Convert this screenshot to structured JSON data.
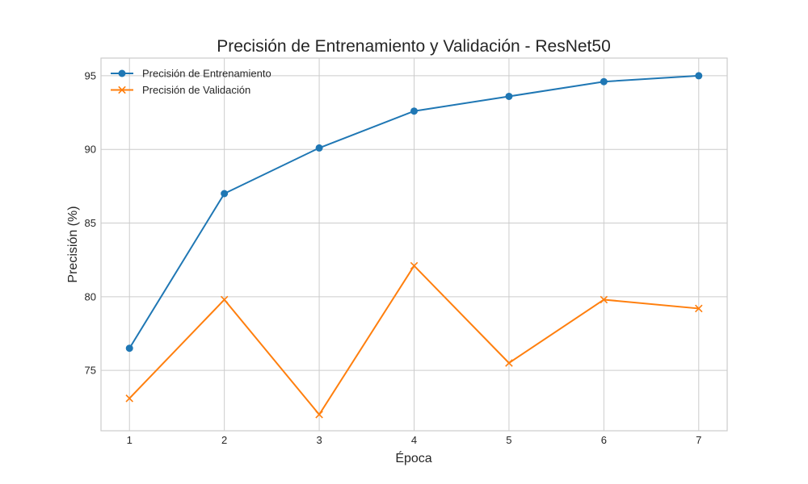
{
  "chart_data": {
    "type": "line",
    "title": "Precisión de Entrenamiento y Validación - ResNet50",
    "xlabel": "Época",
    "ylabel": "Precisión (%)",
    "x": [
      1,
      2,
      3,
      4,
      5,
      6,
      7
    ],
    "x_ticks": [
      "1",
      "2",
      "3",
      "4",
      "5",
      "6",
      "7"
    ],
    "y_ticks": [
      "75",
      "80",
      "85",
      "90",
      "95"
    ],
    "xlim": [
      0.7,
      7.3
    ],
    "ylim": [
      70.9,
      96.2
    ],
    "grid": true,
    "legend_position": "top-left",
    "series": [
      {
        "name": "Precisión de Entrenamiento",
        "marker": "circle",
        "color": "#1f77b4",
        "values": [
          76.5,
          87.0,
          90.1,
          92.6,
          93.6,
          94.6,
          95.0
        ]
      },
      {
        "name": "Precisión de Validación",
        "marker": "x",
        "color": "#ff7f0e",
        "values": [
          73.1,
          79.8,
          72.0,
          82.1,
          75.5,
          79.8,
          79.2
        ]
      }
    ]
  }
}
